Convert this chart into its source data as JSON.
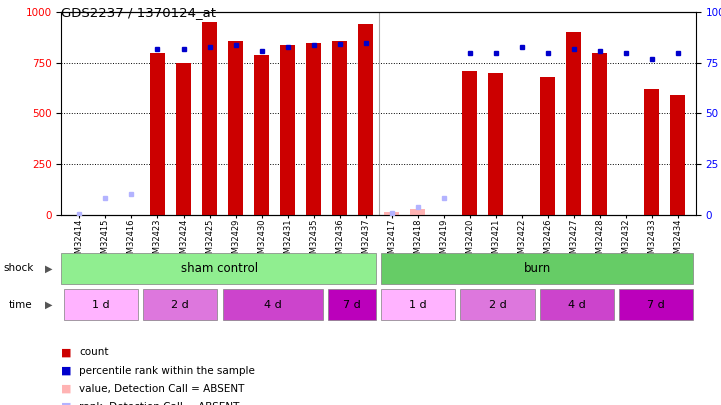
{
  "title": "GDS2237 / 1370124_at",
  "samples": [
    "GSM32414",
    "GSM32415",
    "GSM32416",
    "GSM32423",
    "GSM32424",
    "GSM32425",
    "GSM32429",
    "GSM32430",
    "GSM32431",
    "GSM32435",
    "GSM32436",
    "GSM32437",
    "GSM32417",
    "GSM32418",
    "GSM32419",
    "GSM32420",
    "GSM32421",
    "GSM32422",
    "GSM32426",
    "GSM32427",
    "GSM32428",
    "GSM32432",
    "GSM32433",
    "GSM32434"
  ],
  "count_values": [
    0,
    0,
    0,
    800,
    750,
    950,
    860,
    790,
    840,
    850,
    860,
    940,
    15,
    30,
    0,
    710,
    700,
    0,
    680,
    900,
    800,
    0,
    620,
    590
  ],
  "rank_values": [
    5,
    80,
    100,
    820,
    820,
    830,
    840,
    810,
    830,
    840,
    845,
    850,
    10,
    40,
    80,
    800,
    800,
    830,
    800,
    820,
    810,
    800,
    770,
    800
  ],
  "absent_count": [
    false,
    false,
    false,
    false,
    false,
    false,
    false,
    false,
    false,
    false,
    false,
    false,
    true,
    true,
    true,
    false,
    false,
    false,
    false,
    false,
    false,
    false,
    false,
    false
  ],
  "absent_rank": [
    true,
    true,
    true,
    false,
    false,
    false,
    false,
    false,
    false,
    false,
    false,
    false,
    true,
    true,
    true,
    false,
    false,
    false,
    false,
    false,
    false,
    false,
    false,
    false
  ],
  "ylim_left": [
    0,
    1000
  ],
  "ylim_right": [
    0,
    100
  ],
  "yticks_left": [
    0,
    250,
    500,
    750,
    1000
  ],
  "yticks_right": [
    0,
    25,
    50,
    75,
    100
  ],
  "bar_color": "#CC0000",
  "rank_color": "#0000CC",
  "absent_bar_color": "#FFB3B3",
  "absent_rank_color": "#B3B3FF",
  "bar_width": 0.6,
  "sham_color": "#90EE90",
  "burn_color": "#66CC66",
  "time_colors": [
    "#FFB3FF",
    "#DD77DD",
    "#CC44CC",
    "#BB00BB",
    "#FFB3FF",
    "#DD77DD",
    "#CC44CC",
    "#BB00BB"
  ],
  "time_labels": [
    "1 d",
    "2 d",
    "4 d",
    "7 d",
    "1 d",
    "2 d",
    "4 d",
    "7 d"
  ],
  "time_boundaries": [
    0,
    3,
    6,
    10,
    12,
    15,
    18,
    21,
    24
  ],
  "legend_items": [
    {
      "symbol_color": "#CC0000",
      "label": "count"
    },
    {
      "symbol_color": "#0000CC",
      "label": "percentile rank within the sample"
    },
    {
      "symbol_color": "#FFB3B3",
      "label": "value, Detection Call = ABSENT"
    },
    {
      "symbol_color": "#B3B3FF",
      "label": "rank, Detection Call = ABSENT"
    }
  ]
}
